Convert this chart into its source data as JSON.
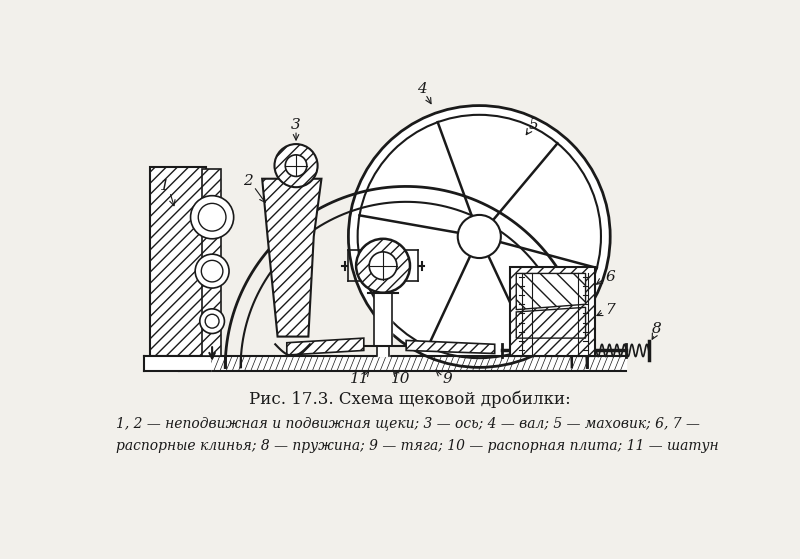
{
  "title": "Рис. 17.3. Схема щековой дробилки:",
  "caption_line1": "1, 2 — неподвижная и подвижная щеки; 3 — ось; 4 — вал; 5 — маховик; 6, 7 —",
  "caption_line2": "распорные клинья; 8 — пружина; 9 — тяга; 10 — распорная плита; 11 — шатун",
  "bg_color": "#f2f0eb",
  "line_color": "#1a1a1a",
  "label_color": "#1a1a1a"
}
